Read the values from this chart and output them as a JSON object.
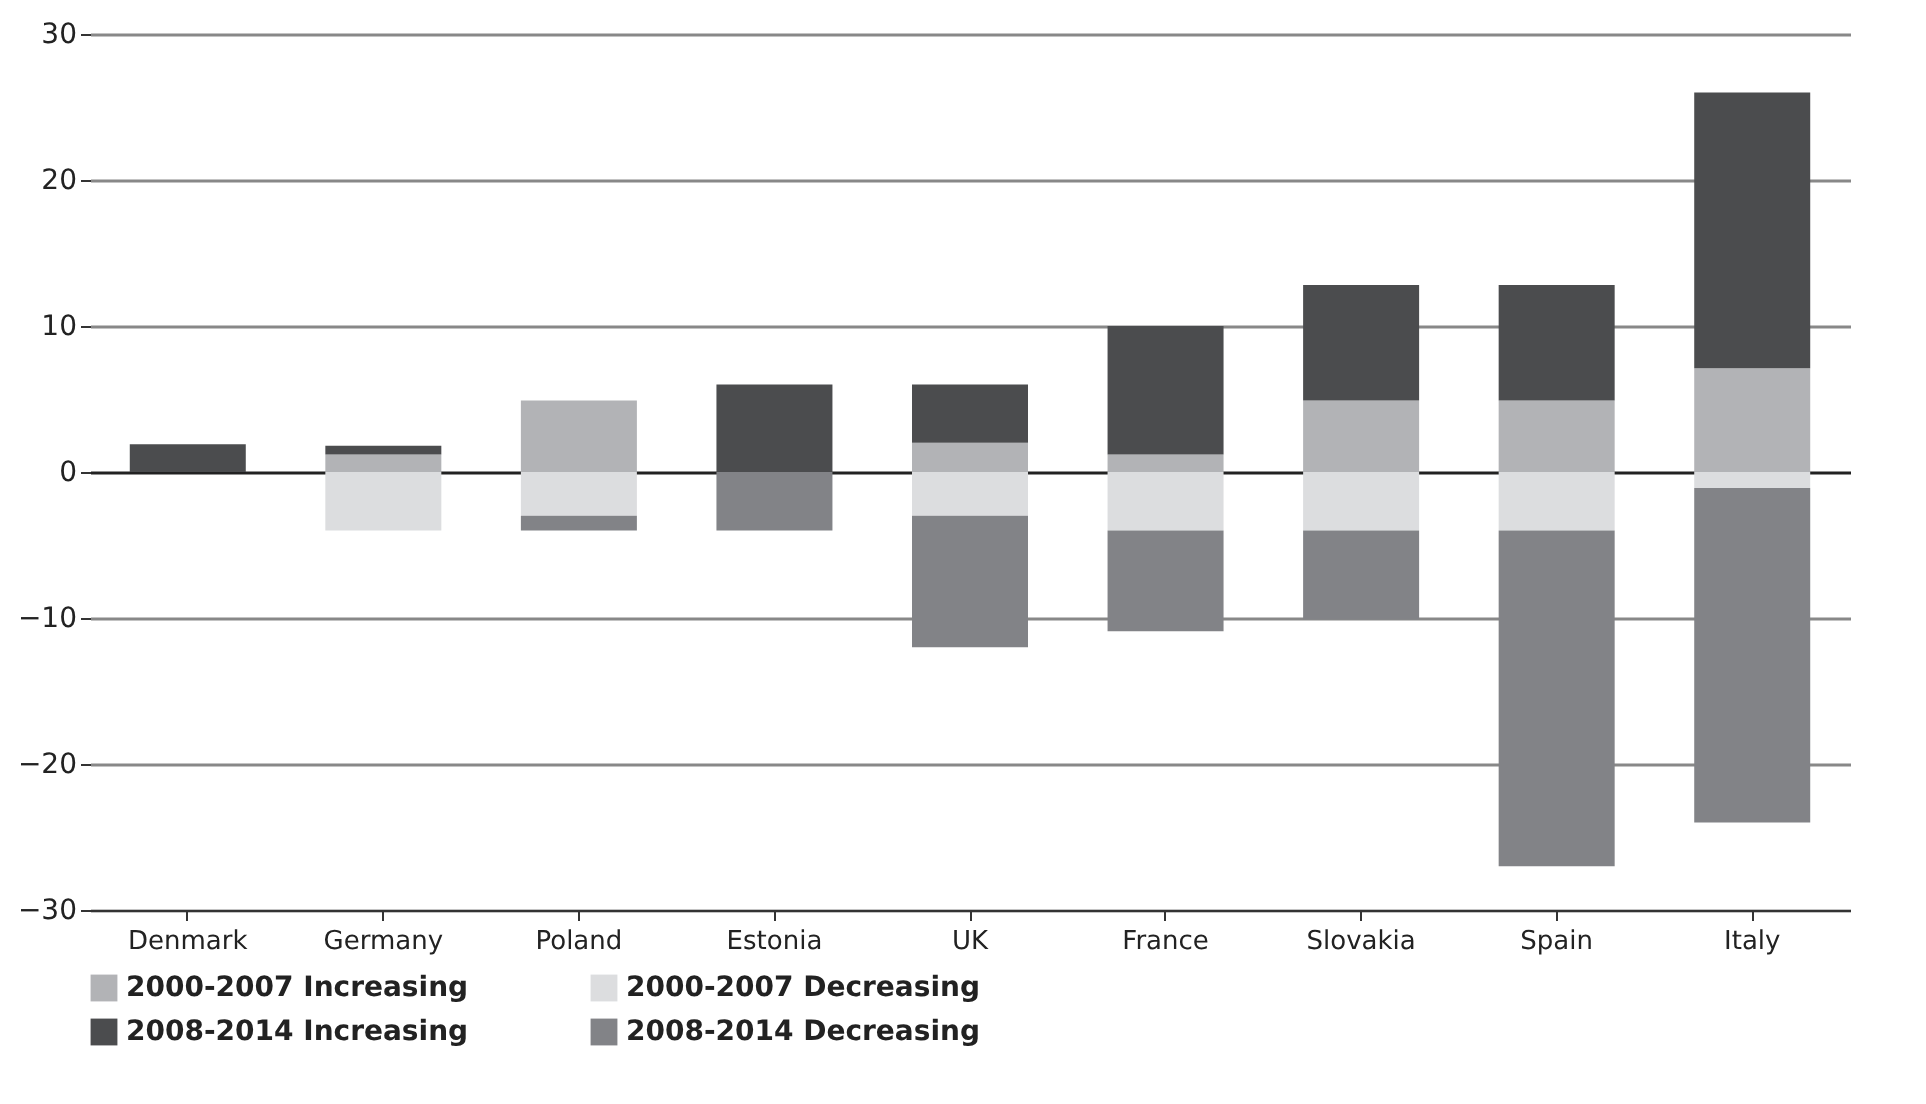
{
  "chart_data": {
    "type": "bar",
    "stacked": true,
    "categories": [
      "Denmark",
      "Germany",
      "Poland",
      "Estonia",
      "UK",
      "France",
      "Slovakia",
      "Spain",
      "Italy"
    ],
    "series": [
      {
        "name": "2000-2007 Increasing",
        "color": "#b2b3b6",
        "values": [
          0,
          1.2,
          4.9,
          0,
          2,
          1.2,
          4.9,
          4.9,
          7.1
        ]
      },
      {
        "name": "2000-2007 Decreasing",
        "color": "#dcdddf",
        "values": [
          0,
          -4,
          -3,
          0,
          -3,
          -4,
          -4,
          -4,
          -1.1
        ]
      },
      {
        "name": "2008-2014 Increasing",
        "color": "#4b4c4e",
        "values": [
          1.9,
          0.6,
          0,
          6,
          4,
          8.8,
          7.9,
          7.9,
          18.9
        ]
      },
      {
        "name": "2008-2014 Decreasing",
        "color": "#828387",
        "values": [
          0,
          0,
          -1,
          -4,
          -9,
          -6.9,
          -6.1,
          -23,
          -22.9
        ]
      }
    ],
    "ylim": [
      -30,
      30
    ],
    "yticks": [
      -30,
      -20,
      -10,
      0,
      10,
      20,
      30
    ],
    "grid": "y",
    "legend": "bottom"
  }
}
